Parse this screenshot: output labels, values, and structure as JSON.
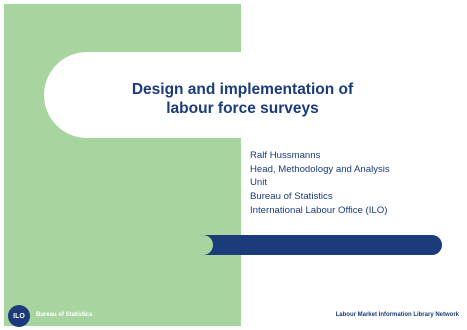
{
  "slide": {
    "title_line1": "Design and implementation of",
    "title_line2": "labour force surveys",
    "author": {
      "name": "Ralf Hussmanns",
      "role_line1": "Head, Methodology and Analysis",
      "role_line2": "Unit",
      "org1": "Bureau of Statistics",
      "org2": "International Labour Office (ILO)"
    },
    "footer": {
      "logo_text": "ILO",
      "left": "Bureau of Statistics",
      "right": "Labour Market Information Library Network"
    },
    "colors": {
      "panel": "#a8d4a0",
      "accent": "#1b3b7a",
      "background": "#ffffff"
    }
  }
}
